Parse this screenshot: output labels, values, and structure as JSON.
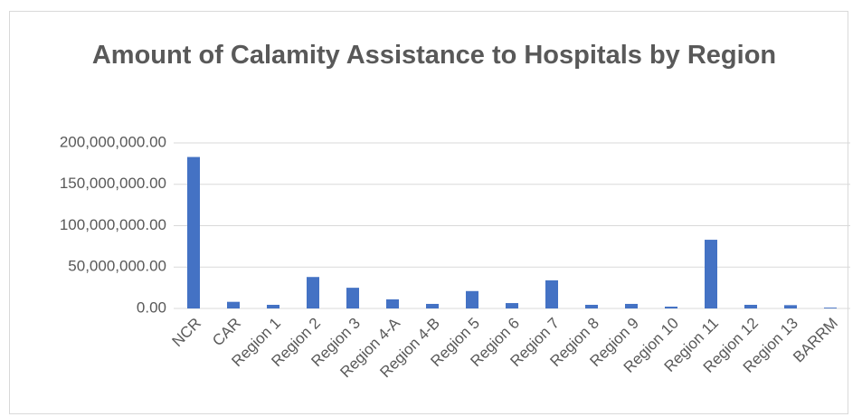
{
  "chart_data": {
    "type": "bar",
    "title": "Amount of Calamity Assistance to Hospitals by Region",
    "categories": [
      "NCR",
      "CAR",
      "Region 1",
      "Region 2",
      "Region 3",
      "Region 4-A",
      "Region 4-B",
      "Region 5",
      "Region 6",
      "Region 7",
      "Region 8",
      "Region 9",
      "Region 10",
      "Region 11",
      "Region 12",
      "Region 13",
      "BARRM"
    ],
    "values": [
      183000000,
      8000000,
      4400000,
      38000000,
      25000000,
      11000000,
      5500000,
      21000000,
      6500000,
      34000000,
      4400000,
      5500000,
      2200000,
      83000000,
      4400000,
      4000000,
      1000000
    ],
    "color": "#4472c4",
    "ylim": [
      0,
      200000000
    ],
    "yticks": [
      {
        "value": 0,
        "label": "0.00"
      },
      {
        "value": 50000000,
        "label": "50,000,000.00"
      },
      {
        "value": 100000000,
        "label": "100,000,000.00"
      },
      {
        "value": 150000000,
        "label": "150,000,000.00"
      },
      {
        "value": 200000000,
        "label": "200,000,000.00"
      }
    ],
    "grid": true
  }
}
